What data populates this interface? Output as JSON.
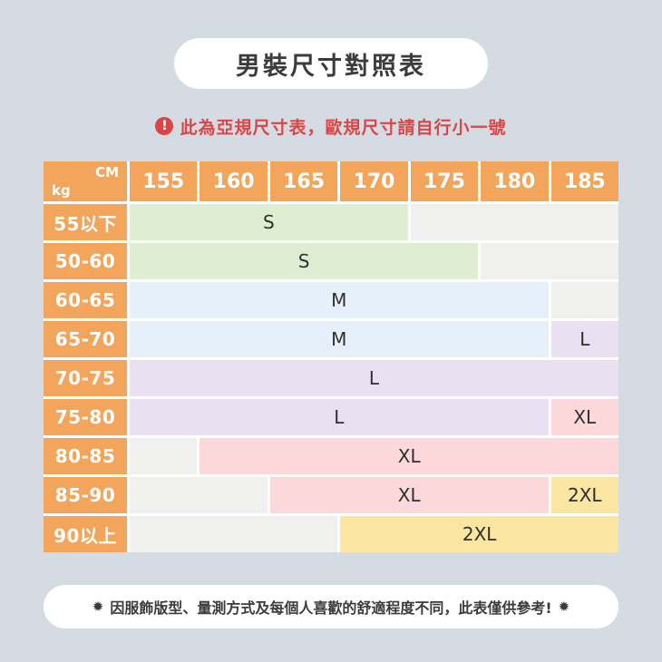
{
  "title": "男裝尺寸對照表",
  "warning": {
    "icon_glyph": "!",
    "text": "此為亞規尺寸表，歐規尺寸請自行小一號",
    "color": "#dc4545"
  },
  "table": {
    "corner": {
      "cm": "CM",
      "kg": "kg"
    },
    "columns": [
      "155",
      "160",
      "165",
      "170",
      "175",
      "180",
      "185"
    ],
    "rows": [
      {
        "label": "55以下",
        "cells": [
          {
            "size": "S",
            "span": 4,
            "key": "S"
          },
          {
            "size": "",
            "span": 3,
            "key": "empty"
          }
        ]
      },
      {
        "label": "50-60",
        "cells": [
          {
            "size": "S",
            "span": 5,
            "key": "S"
          },
          {
            "size": "",
            "span": 2,
            "key": "empty"
          }
        ]
      },
      {
        "label": "60-65",
        "cells": [
          {
            "size": "M",
            "span": 6,
            "key": "M"
          },
          {
            "size": "",
            "span": 1,
            "key": "empty"
          }
        ]
      },
      {
        "label": "65-70",
        "cells": [
          {
            "size": "M",
            "span": 6,
            "key": "M"
          },
          {
            "size": "L",
            "span": 1,
            "key": "L"
          }
        ]
      },
      {
        "label": "70-75",
        "cells": [
          {
            "size": "L",
            "span": 7,
            "key": "L"
          }
        ]
      },
      {
        "label": "75-80",
        "cells": [
          {
            "size": "L",
            "span": 6,
            "key": "L"
          },
          {
            "size": "XL",
            "span": 1,
            "key": "XL"
          }
        ]
      },
      {
        "label": "80-85",
        "cells": [
          {
            "size": "",
            "span": 1,
            "key": "empty"
          },
          {
            "size": "XL",
            "span": 6,
            "key": "XL"
          }
        ]
      },
      {
        "label": "85-90",
        "cells": [
          {
            "size": "",
            "span": 2,
            "key": "empty"
          },
          {
            "size": "XL",
            "span": 4,
            "key": "XL"
          },
          {
            "size": "2XL",
            "span": 1,
            "key": "2XL"
          }
        ]
      },
      {
        "label": "90以上",
        "cells": [
          {
            "size": "",
            "span": 3,
            "key": "empty"
          },
          {
            "size": "2XL",
            "span": 4,
            "key": "2XL"
          }
        ]
      }
    ],
    "colors": {
      "header": "#f3a55c",
      "S": "#dfedd3",
      "M": "#e6f0fb",
      "L": "#e9e0f1",
      "XL": "#fcd8db",
      "2XL": "#fae5a1",
      "empty": "#f0f0ef"
    }
  },
  "footer": {
    "star": "✹",
    "text": "因服飾版型、量測方式及每個人喜歡的舒適程度不同，此表僅供參考!"
  },
  "chart_data": {
    "type": "table",
    "title": "男裝尺寸對照表",
    "note_warning": "此為亞規尺寸表，歐規尺寸請自行小一號",
    "note_footer": "因服飾版型、量測方式及每個人喜歡的舒適程度不同，此表僅供參考!",
    "column_axis_label": "CM",
    "row_axis_label": "kg",
    "columns_cm": [
      155,
      160,
      165,
      170,
      175,
      180,
      185
    ],
    "rows_kg": [
      "55以下",
      "50-60",
      "60-65",
      "65-70",
      "70-75",
      "75-80",
      "80-85",
      "85-90",
      "90以上"
    ],
    "matrix": [
      [
        "S",
        "S",
        "S",
        "S",
        "",
        "",
        ""
      ],
      [
        "S",
        "S",
        "S",
        "S",
        "S",
        "",
        ""
      ],
      [
        "M",
        "M",
        "M",
        "M",
        "M",
        "M",
        ""
      ],
      [
        "M",
        "M",
        "M",
        "M",
        "M",
        "M",
        "L"
      ],
      [
        "L",
        "L",
        "L",
        "L",
        "L",
        "L",
        "L"
      ],
      [
        "L",
        "L",
        "L",
        "L",
        "L",
        "L",
        "XL"
      ],
      [
        "",
        "XL",
        "XL",
        "XL",
        "XL",
        "XL",
        "XL"
      ],
      [
        "",
        "",
        "XL",
        "XL",
        "XL",
        "XL",
        "2XL"
      ],
      [
        "",
        "",
        "",
        "2XL",
        "2XL",
        "2XL",
        "2XL"
      ]
    ],
    "size_colors": {
      "S": "#dfedd3",
      "M": "#e6f0fb",
      "L": "#e9e0f1",
      "XL": "#fcd8db",
      "2XL": "#fae5a1"
    }
  }
}
